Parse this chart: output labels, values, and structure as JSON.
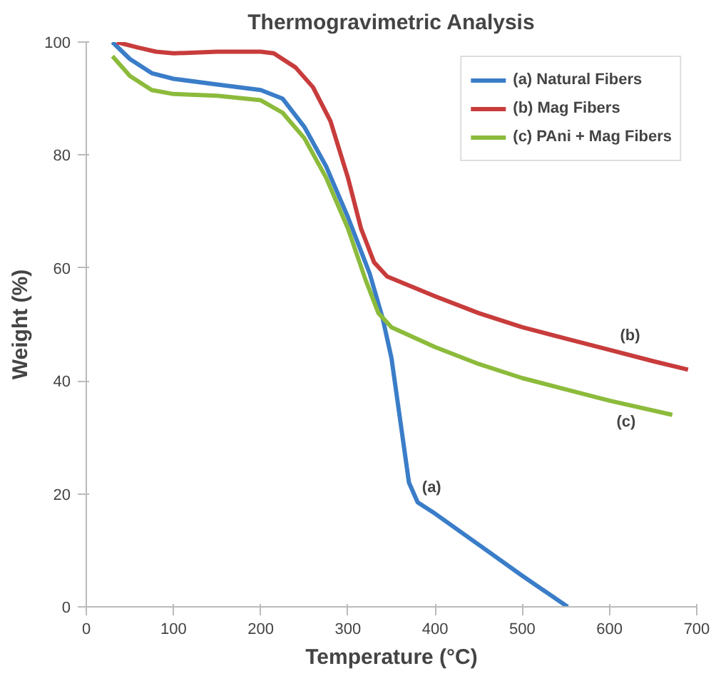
{
  "chart_data": {
    "type": "line",
    "title": "Thermogravimetric Analysis",
    "xlabel": "Temperature (°C)",
    "ylabel": "Weight (%)",
    "xlim": [
      0,
      700
    ],
    "ylim": [
      0,
      100
    ],
    "xticks": [
      0,
      100,
      200,
      300,
      400,
      500,
      600,
      700
    ],
    "yticks": [
      0,
      20,
      40,
      60,
      80,
      100
    ],
    "grid": false,
    "legend": "top right",
    "marker": "none",
    "line_style": "solid",
    "series": [
      {
        "name": "(a) Natural Fibers",
        "color": "#3a7dc8",
        "x": [
          30,
          50,
          75,
          100,
          150,
          200,
          225,
          250,
          275,
          300,
          325,
          340,
          350,
          360,
          370,
          380,
          400,
          450,
          500,
          552
        ],
        "values": [
          100,
          97,
          94.5,
          93.5,
          92.5,
          91.5,
          90,
          85,
          78,
          69,
          59,
          51,
          44,
          33,
          22,
          18.5,
          16.5,
          11,
          5.5,
          0
        ]
      },
      {
        "name": "(b) Mag Fibers",
        "color": "#c83c3c",
        "x": [
          35,
          60,
          80,
          100,
          150,
          200,
          215,
          240,
          260,
          280,
          300,
          315,
          330,
          345,
          400,
          450,
          500,
          550,
          600,
          650,
          690
        ],
        "values": [
          100,
          99,
          98.3,
          98,
          98.3,
          98.3,
          98,
          95.5,
          92,
          86,
          76,
          67,
          61,
          58.5,
          55,
          52,
          49.5,
          47.5,
          45.5,
          43.5,
          42
        ]
      },
      {
        "name": "(c) PAni + Mag Fibers",
        "color": "#8cbb3c",
        "x": [
          30,
          50,
          75,
          100,
          150,
          200,
          225,
          250,
          275,
          300,
          320,
          335,
          350,
          400,
          450,
          500,
          550,
          600,
          672
        ],
        "values": [
          97.5,
          94,
          91.5,
          90.8,
          90.5,
          89.7,
          87.5,
          83,
          76,
          67,
          58,
          52,
          49.5,
          46,
          43,
          40.5,
          38.5,
          36.5,
          34
        ]
      }
    ],
    "annotations": [
      {
        "text": "(a)",
        "x": 385,
        "y": 18
      },
      {
        "text": "(b)",
        "x": 612,
        "y": 45
      },
      {
        "text": "(c)",
        "x": 608,
        "y": 36.2
      }
    ]
  }
}
